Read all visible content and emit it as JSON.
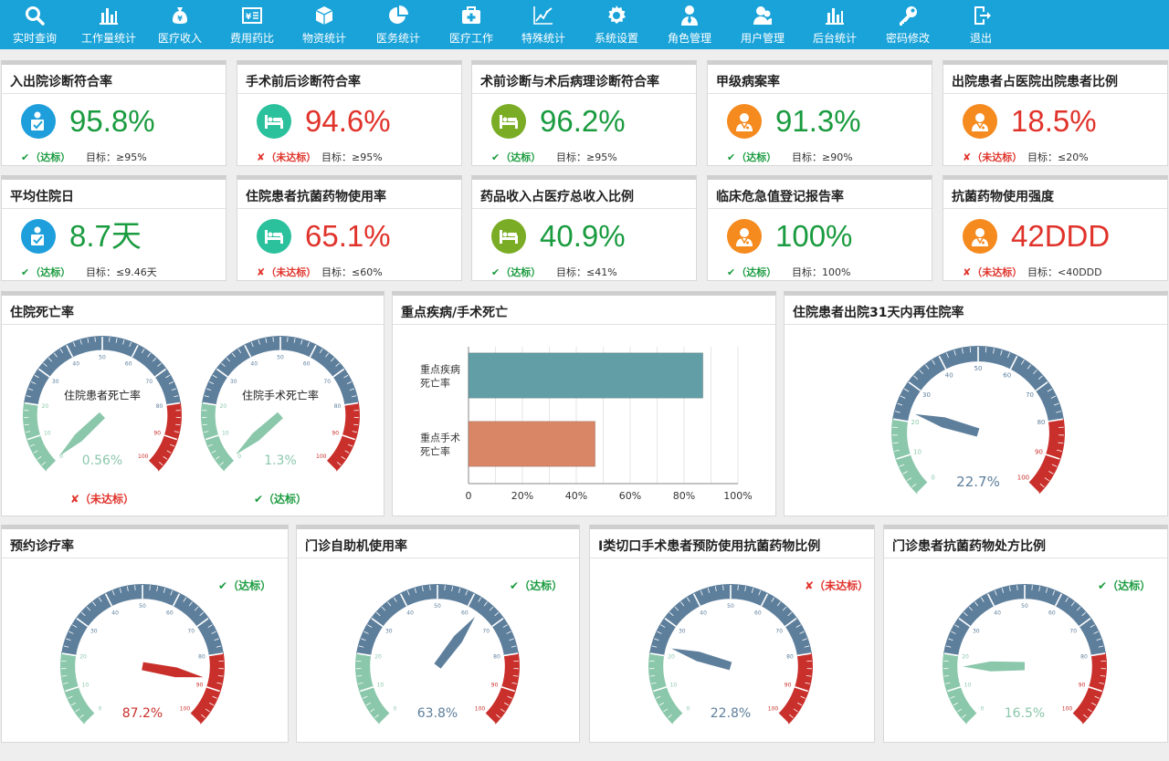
{
  "colors": {
    "nav_bg": "#1aa3d9",
    "green": "#1a9b3f",
    "red": "#e0332b",
    "gauge_blue": "#5e7f9c",
    "gauge_green": "#8bc7ab",
    "gauge_red": "#c9302c",
    "bar_teal": "#619ea5",
    "bar_salmon": "#d98667"
  },
  "nav": [
    {
      "label": "实时查询",
      "icon": "search-icon"
    },
    {
      "label": "工作量统计",
      "icon": "bar-chart-icon"
    },
    {
      "label": "医疗收入",
      "icon": "money-bag-icon"
    },
    {
      "label": "费用药比",
      "icon": "invoice-icon"
    },
    {
      "label": "物资统计",
      "icon": "box-icon"
    },
    {
      "label": "医务统计",
      "icon": "pie-chart-icon"
    },
    {
      "label": "医疗工作",
      "icon": "medical-kit-icon"
    },
    {
      "label": "特殊统计",
      "icon": "line-chart-icon"
    },
    {
      "label": "系统设置",
      "icon": "gear-icon"
    },
    {
      "label": "角色管理",
      "icon": "user-tie-icon"
    },
    {
      "label": "用户管理",
      "icon": "users-icon"
    },
    {
      "label": "后台统计",
      "icon": "bar-chart-icon"
    },
    {
      "label": "密码修改",
      "icon": "key-icon"
    },
    {
      "label": "退出",
      "icon": "logout-icon"
    }
  ],
  "kpis": [
    {
      "title": "入出院诊断符合率",
      "value": "95.8%",
      "ok": true,
      "status": "（达标）",
      "target": "目标：≥95%",
      "icon": "person-check-icon"
    },
    {
      "title": "手术前后诊断符合率",
      "value": "94.6%",
      "ok": false,
      "status": "（未达标）",
      "target": "目标：≥95%",
      "icon": "hospital-bed-icon"
    },
    {
      "title": "术前诊断与术后病理诊断符合率",
      "value": "96.2%",
      "ok": true,
      "status": "（达标）",
      "target": "目标：≥95%",
      "icon": "hospital-bed-icon"
    },
    {
      "title": "甲级病案率",
      "value": "91.3%",
      "ok": true,
      "status": "（达标）",
      "target": "目标：≥90%",
      "icon": "doctor-icon"
    },
    {
      "title": "出院患者占医院出院患者比例",
      "value": "18.5%",
      "ok": false,
      "status": "（未达标）",
      "target": "目标：≤20%",
      "icon": "doctor-icon"
    },
    {
      "title": "平均住院日",
      "value": "8.7天",
      "ok": true,
      "status": "（达标）",
      "target": "目标：≤9.46天",
      "icon": "person-check-icon"
    },
    {
      "title": "住院患者抗菌药物使用率",
      "value": "65.1%",
      "ok": false,
      "status": "（未达标）",
      "target": "目标：≤60%",
      "icon": "hospital-bed-icon"
    },
    {
      "title": "药品收入占医疗总收入比例",
      "value": "40.9%",
      "ok": true,
      "status": "（达标）",
      "target": "目标：≤41%",
      "icon": "hospital-bed-icon"
    },
    {
      "title": "临床危急值登记报告率",
      "value": "100%",
      "ok": true,
      "status": "（达标）",
      "target": "目标：100%",
      "icon": "doctor-icon"
    },
    {
      "title": "抗菌药物使用强度",
      "value": "42DDD",
      "ok": false,
      "status": "（未达标）",
      "target": "目标：<40DDD",
      "icon": "doctor-icon"
    }
  ],
  "mortality": {
    "title": "住院死亡率",
    "gauges": [
      {
        "name": "住院患者死亡率",
        "value": 0.56,
        "value_text": "0.56%",
        "ok": false,
        "status": "（未达标）"
      },
      {
        "name": "住院手术死亡率",
        "value": 1.3,
        "value_text": "1.3%",
        "ok": true,
        "status": "（达标）"
      }
    ]
  },
  "key_disease": {
    "title": "重点疾病/手术死亡",
    "chart_data": {
      "type": "bar",
      "orientation": "horizontal",
      "categories": [
        "重点疾病死亡率",
        "重点手术死亡率"
      ],
      "category_lines": [
        [
          "重点疾病",
          "死亡率"
        ],
        [
          "重点手术",
          "死亡率"
        ]
      ],
      "values": [
        87,
        47
      ],
      "xlim": [
        0,
        100
      ],
      "xticks": [
        "0",
        "20%",
        "40%",
        "60%",
        "80%",
        "100%"
      ],
      "grid": true
    }
  },
  "readmission": {
    "title": "住院患者出院31天内再住院率",
    "value": 22.7,
    "value_text": "22.7%"
  },
  "bottom": [
    {
      "title": "预约诊疗率",
      "value": 87.2,
      "value_text": "87.2%",
      "ok": true,
      "status": "（达标）"
    },
    {
      "title": "门诊自助机使用率",
      "value": 63.8,
      "value_text": "63.8%",
      "ok": true,
      "status": "（达标）"
    },
    {
      "title": "Ⅰ类切口手术患者预防使用抗菌药物比例",
      "value": 22.8,
      "value_text": "22.8%",
      "ok": false,
      "status": "（未达标）"
    },
    {
      "title": "门诊患者抗菌药物处方比例",
      "value": 16.5,
      "value_text": "16.5%",
      "ok": true,
      "status": "（达标）"
    }
  ],
  "gauge_scale": {
    "min": 0,
    "max": 100,
    "labels": [
      "0",
      "10",
      "20",
      "30",
      "40",
      "50",
      "60",
      "70",
      "80",
      "90",
      "100"
    ]
  }
}
